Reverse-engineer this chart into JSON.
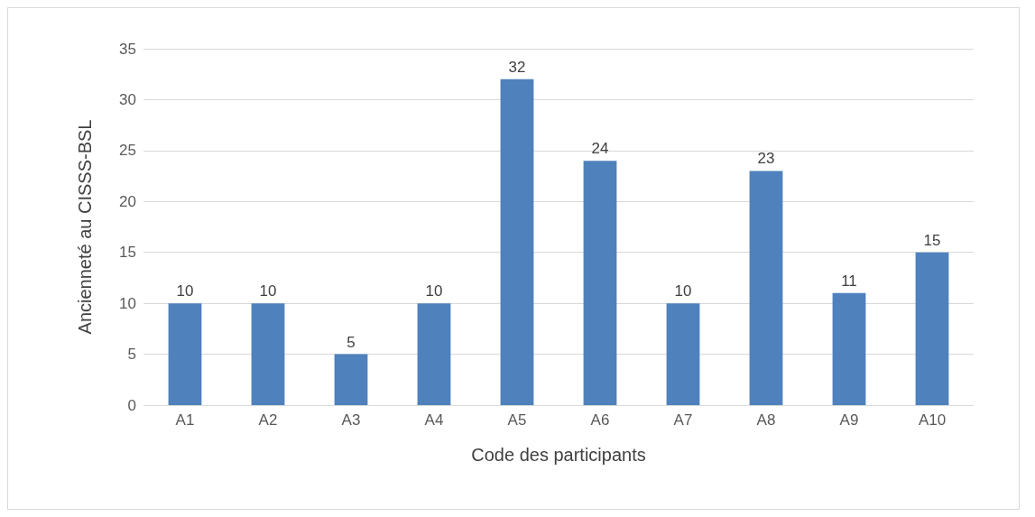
{
  "chart_data": {
    "type": "bar",
    "xlabel": "Code des participants",
    "ylabel": "Ancienneté au CISSS-BSL",
    "categories": [
      "A1",
      "A2",
      "A3",
      "A4",
      "A5",
      "A6",
      "A7",
      "A8",
      "A9",
      "A10"
    ],
    "values": [
      10,
      10,
      5,
      10,
      32,
      24,
      10,
      23,
      11,
      15
    ],
    "color": "#4f81bd",
    "ylim": [
      0,
      35
    ],
    "yticks": [
      0,
      5,
      10,
      15,
      20,
      25,
      30,
      35
    ],
    "grid": "y",
    "data_labels": true
  }
}
